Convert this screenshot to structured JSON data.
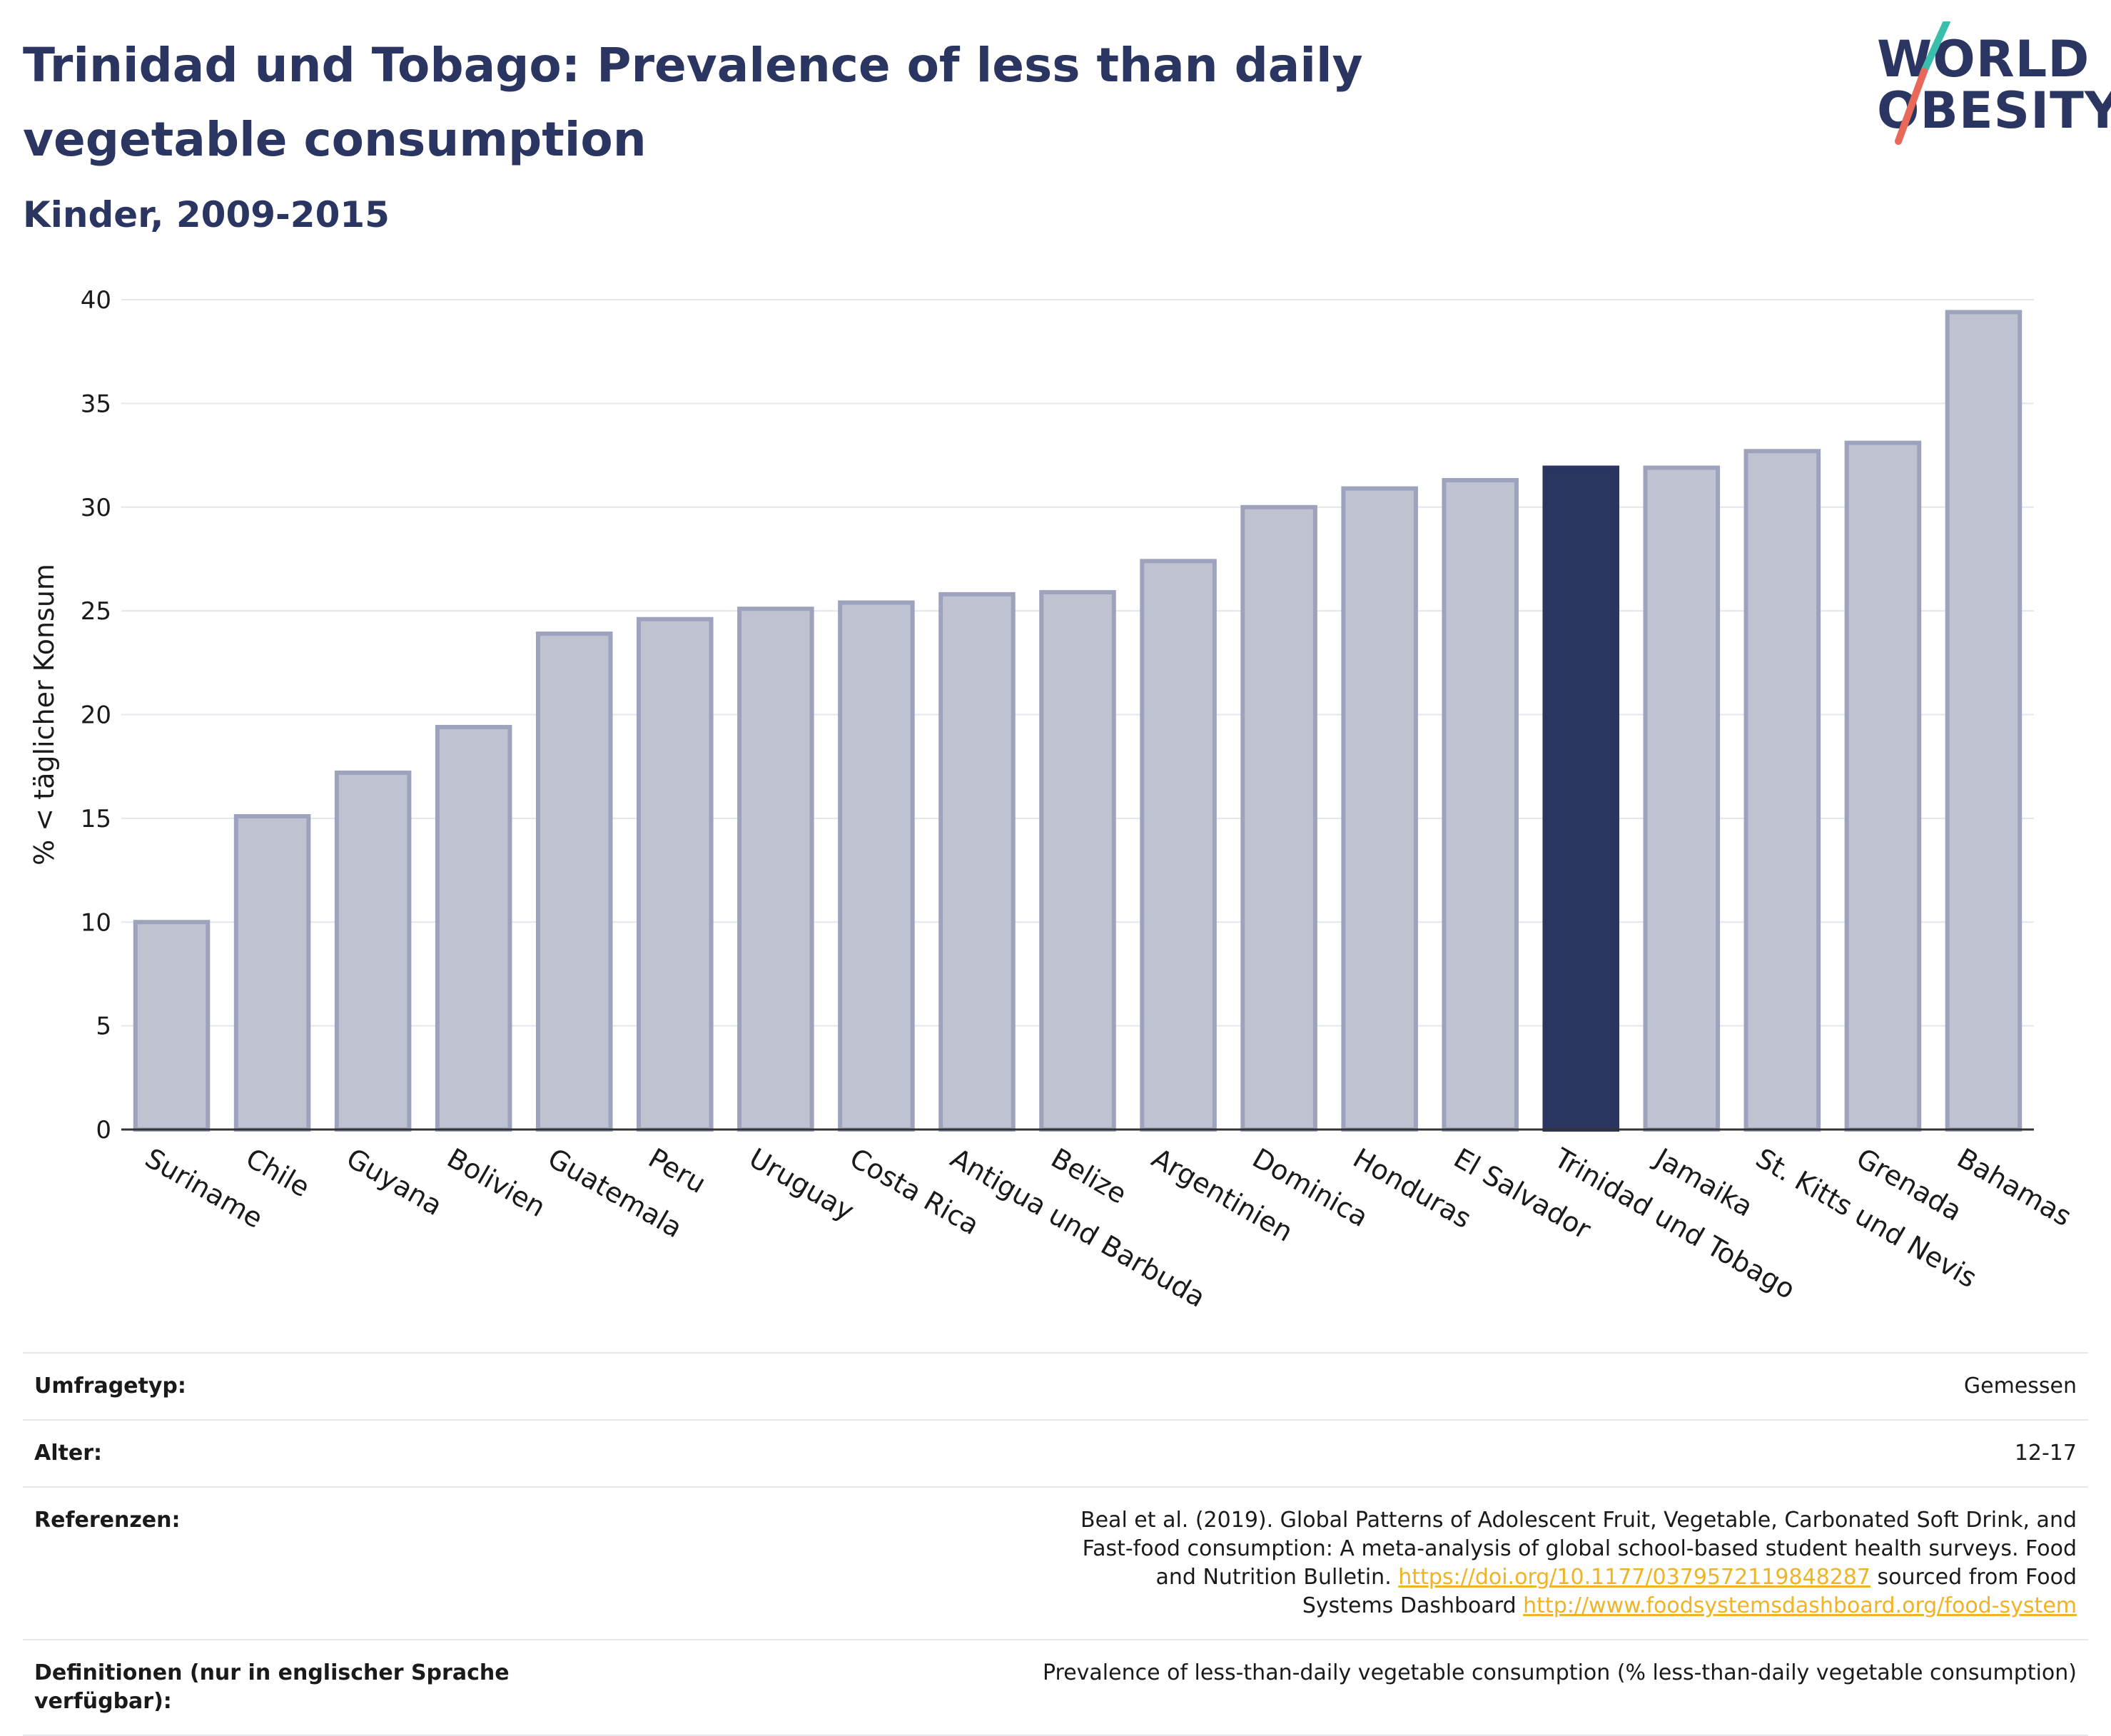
{
  "header": {
    "title": "Trinidad und Tobago: Prevalence of less than daily vegetable consumption",
    "subtitle": "Kinder, 2009-2015"
  },
  "logo": {
    "line1": "WORLD",
    "line2": "OBESITY",
    "slash_colors": [
      "#3bbfad",
      "#e8685a"
    ]
  },
  "chart_data": {
    "type": "bar",
    "title": "Trinidad und Tobago: Prevalence of less than daily vegetable consumption",
    "subtitle": "Kinder, 2009-2015",
    "xlabel": "",
    "ylabel": "% < täglicher Konsum",
    "ylim": [
      0,
      40
    ],
    "yticks": [
      0,
      5,
      10,
      15,
      20,
      25,
      30,
      35,
      40
    ],
    "grid": true,
    "highlight": "Trinidad und Tobago",
    "colors": {
      "default": "#bfc2d0",
      "default_stroke": "#9ea3bd",
      "highlight": "#2b3562"
    },
    "categories": [
      "Suriname",
      "Chile",
      "Guyana",
      "Bolivien",
      "Guatemala",
      "Peru",
      "Uruguay",
      "Costa Rica",
      "Antigua und Barbuda",
      "Belize",
      "Argentinien",
      "Dominica",
      "Honduras",
      "El Salvador",
      "Trinidad und Tobago",
      "Jamaika",
      "St. Kitts und Nevis",
      "Grenada",
      "Bahamas"
    ],
    "values": [
      10.0,
      15.1,
      17.2,
      19.4,
      23.9,
      24.6,
      25.1,
      25.4,
      25.8,
      25.9,
      27.4,
      30.0,
      30.9,
      31.3,
      31.9,
      31.9,
      32.7,
      33.1,
      39.4
    ]
  },
  "info": [
    {
      "key": "Umfragetyp:",
      "value": "Gemessen"
    },
    {
      "key": "Alter:",
      "value": "12-17"
    },
    {
      "key": "Referenzen:",
      "text1": "Beal et al. (2019). Global Patterns of Adolescent Fruit, Vegetable, Carbonated Soft Drink, and Fast-food consumption: A meta-analysis of global school-based student health surveys. Food and Nutrition Bulletin.",
      "link1": "https://doi.org/10.1177/0379572119848287",
      "text2": "sourced from Food Systems Dashboard",
      "link2": "http://www.foodsystemsdashboard.org/food-system"
    },
    {
      "key": "Definitionen (nur in englischer Sprache verfügbar):",
      "value": "Prevalence of less-than-daily vegetable consumption (% less-than-daily vegetable consumption)"
    }
  ]
}
